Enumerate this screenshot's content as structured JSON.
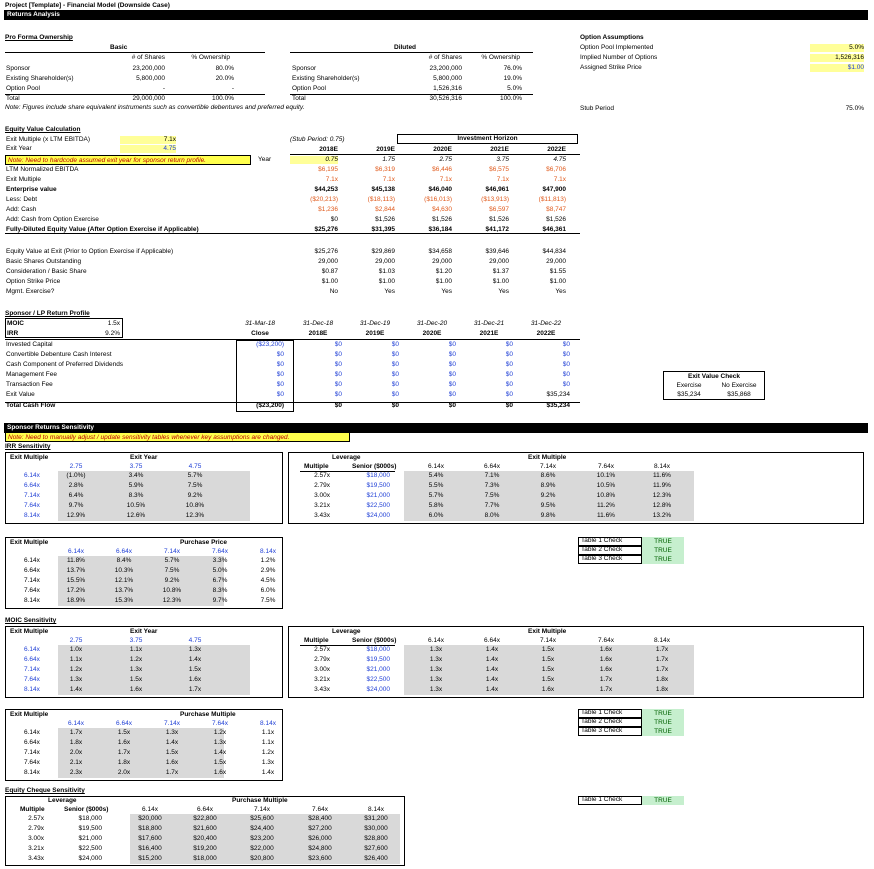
{
  "header": {
    "project": "Project [Template] - Financial Model (Downside Case)",
    "section": "Returns Analysis"
  },
  "pro_forma": {
    "title": "Pro Forma Ownership",
    "basic_label": "Basic",
    "diluted_label": "Diluted",
    "col_shares": "# of Shares",
    "col_own": "% Ownership",
    "basic_rows": [
      {
        "label": "Sponsor",
        "shares": "23,200,000",
        "own": "80.0%"
      },
      {
        "label": "Existing Shareholder(s)",
        "shares": "5,800,000",
        "own": "20.0%"
      },
      {
        "label": "Option Pool",
        "shares": "-",
        "own": "-"
      },
      {
        "label": "Total",
        "shares": "29,000,000",
        "own": "100.0%"
      }
    ],
    "diluted_rows": [
      {
        "label": "Sponsor",
        "shares": "23,200,000",
        "own": "76.0%"
      },
      {
        "label": "Existing Shareholder(s)",
        "shares": "5,800,000",
        "own": "19.0%"
      },
      {
        "label": "Option Pool",
        "shares": "1,526,316",
        "own": "5.0%"
      },
      {
        "label": "Total",
        "shares": "30,526,316",
        "own": "100.0%"
      }
    ],
    "note": "Note: Figures include share equivalent instruments such as convertible debentures and preferred equity."
  },
  "option_assumptions": {
    "title": "Option Assumptions",
    "rows": [
      {
        "label": "Option Pool Implemented",
        "value": "5.0%"
      },
      {
        "label": "Implied Number of Options",
        "value": "1,526,316"
      },
      {
        "label": "Assigned Strike Price",
        "value": "$1.00"
      }
    ],
    "stub_label": "Stub Period",
    "stub_value": "75.0%"
  },
  "equity_value": {
    "title": "Equity Value Calculation",
    "exit_multiple_label": "Exit Multiple (x LTM EBITDA)",
    "exit_multiple": "7.1x",
    "exit_year_label": "Exit Year",
    "exit_year": "4.75",
    "note": "Note: Need to hardcode assumed exit year for sponsor return profile.",
    "year_label": "Year",
    "stub_note": "(Stub Period: 0.75)",
    "horizon": "Investment Horizon",
    "years": [
      "2018E",
      "2019E",
      "2020E",
      "2021E",
      "2022E"
    ],
    "year_nums": [
      "0.75",
      "1.75",
      "2.75",
      "3.75",
      "4.75"
    ],
    "rows": [
      {
        "label": "LTM Normalized EBITDA",
        "vals": [
          "$6,195",
          "$6,319",
          "$6,446",
          "$6,575",
          "$6,706"
        ],
        "cls": "red"
      },
      {
        "label": "Exit Multiple",
        "vals": [
          "7.1x",
          "7.1x",
          "7.1x",
          "7.1x",
          "7.1x"
        ],
        "cls": "red"
      },
      {
        "label": "Enterprise value",
        "vals": [
          "$44,253",
          "$45,138",
          "$46,040",
          "$46,961",
          "$47,900"
        ],
        "cls": "b"
      },
      {
        "label": "Less: Debt",
        "vals": [
          "($20,213)",
          "($18,113)",
          "($16,013)",
          "($13,913)",
          "($11,813)"
        ],
        "cls": "red"
      },
      {
        "label": "Add: Cash",
        "vals": [
          "$1,236",
          "$2,844",
          "$4,630",
          "$6,597",
          "$8,747"
        ],
        "cls": "red"
      },
      {
        "label": "Add: Cash from Option Exercise",
        "vals": [
          "$0",
          "$1,526",
          "$1,526",
          "$1,526",
          "$1,526"
        ],
        "cls": ""
      },
      {
        "label": "Fully-Diluted Equity Value (After Option Exercise if Applicable)",
        "vals": [
          "$25,276",
          "$31,395",
          "$36,184",
          "$41,172",
          "$46,361"
        ],
        "cls": "b"
      }
    ],
    "rows2": [
      {
        "label": "Equity Value at Exit (Prior to Option Exercise if Applicable)",
        "vals": [
          "$25,276",
          "$29,869",
          "$34,658",
          "$39,646",
          "$44,834"
        ]
      },
      {
        "label": "Basic Shares Outstanding",
        "vals": [
          "29,000",
          "29,000",
          "29,000",
          "29,000",
          "29,000"
        ]
      },
      {
        "label": "Consideration / Basic Share",
        "vals": [
          "$0.87",
          "$1.03",
          "$1.20",
          "$1.37",
          "$1.55"
        ]
      },
      {
        "label": "Option Strike Price",
        "vals": [
          "$1.00",
          "$1.00",
          "$1.00",
          "$1.00",
          "$1.00"
        ]
      },
      {
        "label": "Mgmt. Exercise?",
        "vals": [
          "No",
          "Yes",
          "Yes",
          "Yes",
          "Yes"
        ]
      }
    ]
  },
  "sponsor_lp": {
    "title": "Sponsor / LP Return Profile",
    "moic_label": "MOIC",
    "moic": "1.5x",
    "irr_label": "IRR",
    "irr": "9.2%",
    "dates": [
      "31-Mar-18",
      "31-Dec-18",
      "31-Dec-19",
      "31-Dec-20",
      "31-Dec-21",
      "31-Dec-22"
    ],
    "subs": [
      "Close",
      "2018E",
      "2019E",
      "2020E",
      "2021E",
      "2022E"
    ],
    "rows": [
      {
        "label": "Invested Capital",
        "vals": [
          "($23,200)",
          "$0",
          "$0",
          "$0",
          "$0",
          "$0"
        ]
      },
      {
        "label": "Convertible Debenture Cash Interest",
        "vals": [
          "$0",
          "$0",
          "$0",
          "$0",
          "$0",
          "$0"
        ]
      },
      {
        "label": "Cash Component of Preferred Dividends",
        "vals": [
          "$0",
          "$0",
          "$0",
          "$0",
          "$0",
          "$0"
        ]
      },
      {
        "label": "Management Fee",
        "vals": [
          "$0",
          "$0",
          "$0",
          "$0",
          "$0",
          "$0"
        ]
      },
      {
        "label": "Transaction Fee",
        "vals": [
          "$0",
          "$0",
          "$0",
          "$0",
          "$0",
          "$0"
        ]
      },
      {
        "label": "Exit Value",
        "vals": [
          "$0",
          "$0",
          "$0",
          "$0",
          "$0",
          "$35,234"
        ]
      },
      {
        "label": "Total Cash Flow",
        "vals": [
          "($23,200)",
          "$0",
          "$0",
          "$0",
          "$0",
          "$35,234"
        ]
      }
    ],
    "exit_check": {
      "title": "Exit Value Check",
      "h1": "Exercise",
      "h2": "No Exercise",
      "v1": "$35,234",
      "v2": "$35,868"
    }
  },
  "sensitivity": {
    "title": "Sponsor Returns Sensitivity",
    "note": "Note: Need to manually adjust / update sensitivity tables whenever key assumptions are changed.",
    "irr_title": "IRR Sensitivity",
    "moic_title": "MOIC Sensitivity",
    "equity_title": "Equity Cheque Sensitivity",
    "exit_multiple": "Exit Multiple",
    "exit_year": "Exit Year",
    "leverage": "Leverage",
    "multiple": "Multiple",
    "senior": "Senior ($000s)",
    "purchase_price": "Purchase Price",
    "purchase_multiple": "Purchase Multiple",
    "row_mults": [
      "6.14x",
      "6.64x",
      "7.14x",
      "7.64x",
      "8.14x"
    ],
    "exit_years": [
      "2.75",
      "3.75",
      "4.75"
    ],
    "lev_mults": [
      "2.57x",
      "2.79x",
      "3.00x",
      "3.21x",
      "3.43x"
    ],
    "lev_senior": [
      "$18,000",
      "$19,500",
      "$21,000",
      "$22,500",
      "$24,000"
    ],
    "col_mults": [
      "6.14x",
      "6.64x",
      "7.14x",
      "7.64x",
      "8.14x"
    ],
    "irr_t1": [
      [
        "(1.0%)",
        "3.4%",
        "5.7%"
      ],
      [
        "2.8%",
        "5.9%",
        "7.5%"
      ],
      [
        "6.4%",
        "8.3%",
        "9.2%"
      ],
      [
        "9.7%",
        "10.5%",
        "10.8%"
      ],
      [
        "12.9%",
        "12.6%",
        "12.3%"
      ]
    ],
    "irr_t2": [
      [
        "5.4%",
        "7.1%",
        "8.6%",
        "10.1%",
        "11.6%"
      ],
      [
        "5.5%",
        "7.3%",
        "8.9%",
        "10.5%",
        "11.9%"
      ],
      [
        "5.7%",
        "7.5%",
        "9.2%",
        "10.8%",
        "12.3%"
      ],
      [
        "5.8%",
        "7.7%",
        "9.5%",
        "11.2%",
        "12.8%"
      ],
      [
        "6.0%",
        "8.0%",
        "9.8%",
        "11.6%",
        "13.2%"
      ]
    ],
    "irr_t3": [
      [
        "11.8%",
        "8.4%",
        "5.7%",
        "3.3%",
        "1.2%"
      ],
      [
        "13.7%",
        "10.3%",
        "7.5%",
        "5.0%",
        "2.9%"
      ],
      [
        "15.5%",
        "12.1%",
        "9.2%",
        "6.7%",
        "4.5%"
      ],
      [
        "17.2%",
        "13.7%",
        "10.8%",
        "8.3%",
        "6.0%"
      ],
      [
        "18.9%",
        "15.3%",
        "12.3%",
        "9.7%",
        "7.5%"
      ]
    ],
    "moic_t1": [
      [
        "1.0x",
        "1.1x",
        "1.3x"
      ],
      [
        "1.1x",
        "1.2x",
        "1.4x"
      ],
      [
        "1.2x",
        "1.3x",
        "1.5x"
      ],
      [
        "1.3x",
        "1.5x",
        "1.6x"
      ],
      [
        "1.4x",
        "1.6x",
        "1.7x"
      ]
    ],
    "moic_t2": [
      [
        "1.3x",
        "1.4x",
        "1.5x",
        "1.6x",
        "1.7x"
      ],
      [
        "1.3x",
        "1.4x",
        "1.5x",
        "1.6x",
        "1.7x"
      ],
      [
        "1.3x",
        "1.4x",
        "1.5x",
        "1.6x",
        "1.7x"
      ],
      [
        "1.3x",
        "1.4x",
        "1.5x",
        "1.7x",
        "1.8x"
      ],
      [
        "1.3x",
        "1.4x",
        "1.6x",
        "1.7x",
        "1.8x"
      ]
    ],
    "moic_t3": [
      [
        "1.7x",
        "1.5x",
        "1.3x",
        "1.2x",
        "1.1x"
      ],
      [
        "1.8x",
        "1.6x",
        "1.4x",
        "1.3x",
        "1.1x"
      ],
      [
        "2.0x",
        "1.7x",
        "1.5x",
        "1.4x",
        "1.2x"
      ],
      [
        "2.1x",
        "1.8x",
        "1.6x",
        "1.5x",
        "1.3x"
      ],
      [
        "2.3x",
        "2.0x",
        "1.7x",
        "1.6x",
        "1.4x"
      ]
    ],
    "eq_t": [
      [
        "$20,000",
        "$22,800",
        "$25,600",
        "$28,400",
        "$31,200"
      ],
      [
        "$18,800",
        "$21,600",
        "$24,400",
        "$27,200",
        "$30,000"
      ],
      [
        "$17,600",
        "$20,400",
        "$23,200",
        "$26,000",
        "$28,800"
      ],
      [
        "$16,400",
        "$19,200",
        "$22,000",
        "$24,800",
        "$27,600"
      ],
      [
        "$15,200",
        "$18,000",
        "$20,800",
        "$23,600",
        "$26,400"
      ]
    ],
    "checks1": [
      {
        "label": "Table 1 Check",
        "val": "TRUE"
      },
      {
        "label": "Table 2 Check",
        "val": "TRUE"
      },
      {
        "label": "Table 3 Check",
        "val": "TRUE"
      }
    ],
    "checks2": [
      {
        "label": "Table 1 Check",
        "val": "TRUE"
      },
      {
        "label": "Table 2 Check",
        "val": "TRUE"
      },
      {
        "label": "Table 3 Check",
        "val": "TRUE"
      }
    ],
    "checks3": [
      {
        "label": "Table 1 Check",
        "val": "TRUE"
      }
    ]
  }
}
